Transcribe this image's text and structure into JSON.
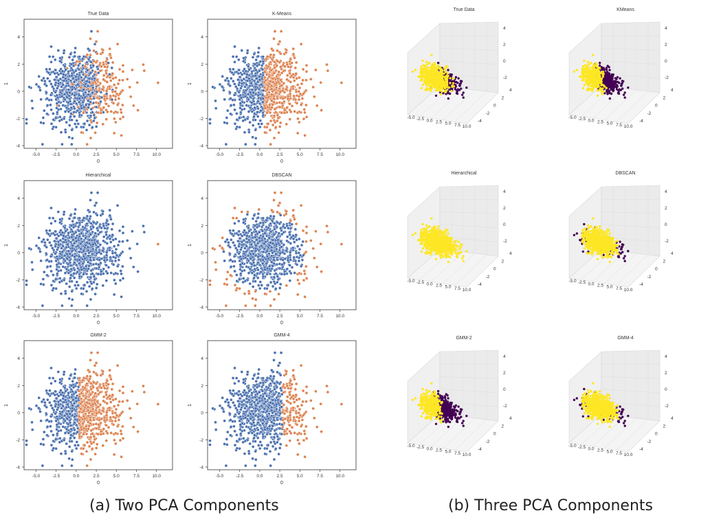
{
  "captions": {
    "two_pca": "(a) Two PCA Components",
    "three_pca": "(b) Three PCA Components"
  },
  "colors": {
    "blue": "#4c72b0",
    "orange": "#dd8452",
    "yellow": "#fde725",
    "purple": "#440154"
  },
  "chart_data": [
    {
      "type": "scatter",
      "title": "True Data",
      "xlabel": "0",
      "ylabel": "1",
      "xlim": [
        -6.5,
        12
      ],
      "ylim": [
        -4.2,
        5.3
      ],
      "xticks": [
        "-5.0",
        "-2.5",
        "0.0",
        "2.5",
        "5.0",
        "7.5",
        "10.0"
      ],
      "yticks": [
        "-4",
        "-2",
        "0",
        "2",
        "4"
      ],
      "cluster_rule": "mixed",
      "n_points": 900
    },
    {
      "type": "scatter",
      "title": "K-Means",
      "xlabel": "0",
      "ylabel": "1",
      "xlim": [
        -6.5,
        12
      ],
      "ylim": [
        -4.2,
        5.3
      ],
      "xticks": [
        "-5.0",
        "-2.5",
        "0.0",
        "2.5",
        "5.0",
        "7.5",
        "10.0"
      ],
      "yticks": [
        "-4",
        "-2",
        "0",
        "2",
        "4"
      ],
      "cluster_rule": "split_x",
      "split_x": 0.5,
      "n_points": 900
    },
    {
      "type": "scatter",
      "title": "Hierarchical",
      "xlabel": "0",
      "ylabel": "1",
      "xlim": [
        -6.5,
        12
      ],
      "ylim": [
        -4.2,
        5.3
      ],
      "xticks": [
        "-5.0",
        "-2.5",
        "0.0",
        "2.5",
        "5.0",
        "7.5",
        "10.0"
      ],
      "yticks": [
        "-4",
        "-2",
        "0",
        "2",
        "4"
      ],
      "cluster_rule": "outlier_only",
      "n_points": 900
    },
    {
      "type": "scatter",
      "title": "DBSCAN",
      "xlabel": "0",
      "ylabel": "1",
      "xlim": [
        -6.5,
        12
      ],
      "ylim": [
        -4.2,
        5.3
      ],
      "xticks": [
        "-5.0",
        "-2.5",
        "0.0",
        "2.5",
        "5.0",
        "7.5",
        "10.0"
      ],
      "yticks": [
        "-4",
        "-2",
        "0",
        "2",
        "4"
      ],
      "cluster_rule": "outer",
      "n_points": 900
    },
    {
      "type": "scatter",
      "title": "GMM-2",
      "xlabel": "0",
      "ylabel": "1",
      "xlim": [
        -6.5,
        12
      ],
      "ylim": [
        -4.2,
        5.3
      ],
      "xticks": [
        "-5.0",
        "-2.5",
        "0.0",
        "2.5",
        "5.0",
        "7.5",
        "10.0"
      ],
      "yticks": [
        "-4",
        "-2",
        "0",
        "2",
        "4"
      ],
      "cluster_rule": "split_x",
      "split_x": 0.3,
      "n_points": 900
    },
    {
      "type": "scatter",
      "title": "GMM-4",
      "xlabel": "0",
      "ylabel": "1",
      "xlim": [
        -6.5,
        12
      ],
      "ylim": [
        -4.2,
        5.3
      ],
      "xticks": [
        "-5.0",
        "-2.5",
        "0.0",
        "2.5",
        "5.0",
        "7.5",
        "10.0"
      ],
      "yticks": [
        "-4",
        "-2",
        "0",
        "2",
        "4"
      ],
      "cluster_rule": "split_x",
      "split_x": 2.8,
      "n_points": 900
    },
    {
      "type": "scatter3d",
      "title": "True Data",
      "xticks": [
        "-5.0",
        "-2.5",
        "0.0",
        "2.5",
        "5.0",
        "7.5",
        "10.0"
      ],
      "yticks": [
        "-4",
        "-2",
        "0",
        "2",
        "4"
      ],
      "zticks": [
        "-2",
        "0",
        "2",
        "4"
      ],
      "cluster_rule": "mixed",
      "n_points": 700
    },
    {
      "type": "scatter3d",
      "title": "KMeans",
      "xticks": [
        "-5.0",
        "-2.5",
        "0.0",
        "2.5",
        "5.0",
        "7.5",
        "10.0"
      ],
      "yticks": [
        "-4",
        "-2",
        "0",
        "2",
        "4"
      ],
      "zticks": [
        "-2",
        "0",
        "2",
        "4"
      ],
      "cluster_rule": "split_x",
      "split_x": 0.5,
      "n_points": 700
    },
    {
      "type": "scatter3d",
      "title": "Hierarchical",
      "xticks": [
        "-5.0",
        "-2.5",
        "0.0",
        "2.5",
        "5.0",
        "7.5",
        "10.0"
      ],
      "yticks": [
        "-4",
        "-2",
        "0",
        "2",
        "4"
      ],
      "zticks": [
        "-2",
        "0",
        "2",
        "4"
      ],
      "cluster_rule": "none",
      "n_points": 700
    },
    {
      "type": "scatter3d",
      "title": "DBSCAN",
      "xticks": [
        "-5.0",
        "-2.5",
        "0.0",
        "2.5",
        "5.0",
        "7.5",
        "10.0"
      ],
      "yticks": [
        "-4",
        "-2",
        "0",
        "2",
        "4"
      ],
      "zticks": [
        "-2",
        "0",
        "2",
        "4"
      ],
      "cluster_rule": "outer",
      "n_points": 700
    },
    {
      "type": "scatter3d",
      "title": "GMM-2",
      "xticks": [
        "-5.0",
        "-2.5",
        "0.0",
        "2.5",
        "5.0",
        "7.5",
        "10.0"
      ],
      "yticks": [
        "-4",
        "-2",
        "0",
        "2",
        "4"
      ],
      "zticks": [
        "-2",
        "0",
        "2",
        "4"
      ],
      "cluster_rule": "split_x",
      "split_x": 0.3,
      "n_points": 700
    },
    {
      "type": "scatter3d",
      "title": "GMM-4",
      "xticks": [
        "-5.0",
        "-2.5",
        "0.0",
        "2.5",
        "5.0",
        "7.5",
        "10.0"
      ],
      "yticks": [
        "-4",
        "-2",
        "0",
        "2",
        "4"
      ],
      "zticks": [
        "-2",
        "0",
        "2",
        "4"
      ],
      "cluster_rule": "outer",
      "n_points": 700
    }
  ]
}
